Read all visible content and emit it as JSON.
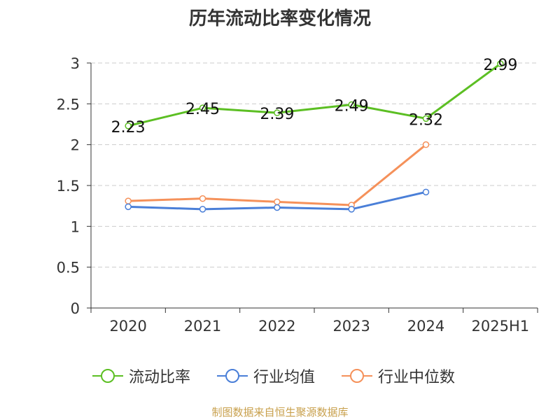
{
  "colors": {
    "text": "#333333",
    "grid": "#cccccc",
    "axis": "#333333",
    "source": "#c8a04c"
  },
  "chart_data": {
    "type": "line",
    "title": "历年流动比率变化情况",
    "categories": [
      "2020",
      "2021",
      "2022",
      "2023",
      "2024",
      "2025H1"
    ],
    "y_ticks": [
      "0",
      "0.5",
      "1",
      "1.5",
      "2",
      "2.5",
      "3"
    ],
    "ylim": [
      0,
      3
    ],
    "grid": true,
    "grid_style": "dashed",
    "legend_position": "bottom",
    "series": [
      {
        "name": "流动比率",
        "color": "#5cbf23",
        "values": [
          2.23,
          2.45,
          2.39,
          2.49,
          2.32,
          2.99
        ],
        "labels": [
          "2.23",
          "2.45",
          "2.39",
          "2.49",
          "2.32",
          "2.99"
        ]
      },
      {
        "name": "行业均值",
        "color": "#4a7fd8",
        "values": [
          1.24,
          1.21,
          1.23,
          1.21,
          1.42,
          null
        ]
      },
      {
        "name": "行业中位数",
        "color": "#f5915a",
        "values": [
          1.31,
          1.34,
          1.3,
          1.26,
          2.0,
          null
        ]
      }
    ]
  },
  "source_note": "制图数据来自恒生聚源数据库"
}
